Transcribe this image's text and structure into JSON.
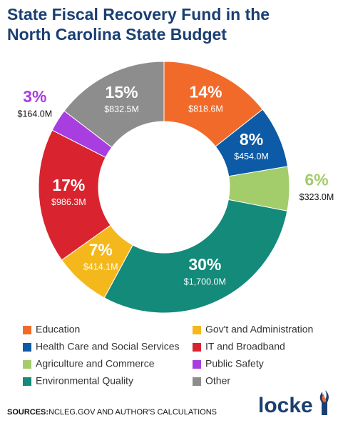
{
  "chart_data": {
    "type": "donut",
    "title": [
      "State Fiscal Recovery Fund in the",
      "North Carolina State Budget"
    ],
    "categories": [
      "Education",
      "Health Care and Social Services",
      "Agriculture and Commerce",
      "Environmental Quality",
      "Gov't and Administration",
      "IT and Broadband",
      "Public Safety",
      "Other"
    ],
    "values": [
      818.6,
      454.0,
      323.0,
      1700.0,
      414.1,
      986.3,
      164.0,
      832.5
    ],
    "value_labels": [
      "$818.6M",
      "$454.0M",
      "$323.0M",
      "$1,700.0M",
      "$414.1M",
      "$986.3M",
      "$164.0M",
      "$832.5M"
    ],
    "percent_labels": [
      "14%",
      "8%",
      "6%",
      "30%",
      "7%",
      "17%",
      "3%",
      "15%"
    ],
    "colors": [
      "#f26a2a",
      "#0d5ba6",
      "#a3cc6a",
      "#138a7a",
      "#f5b81c",
      "#d9232e",
      "#a83ee0",
      "#8d8d8d"
    ],
    "source_label": "SOURCES:",
    "source": "NCLEG.GOV AND AUTHOR'S CALCULATIONS",
    "logo": "locke"
  }
}
